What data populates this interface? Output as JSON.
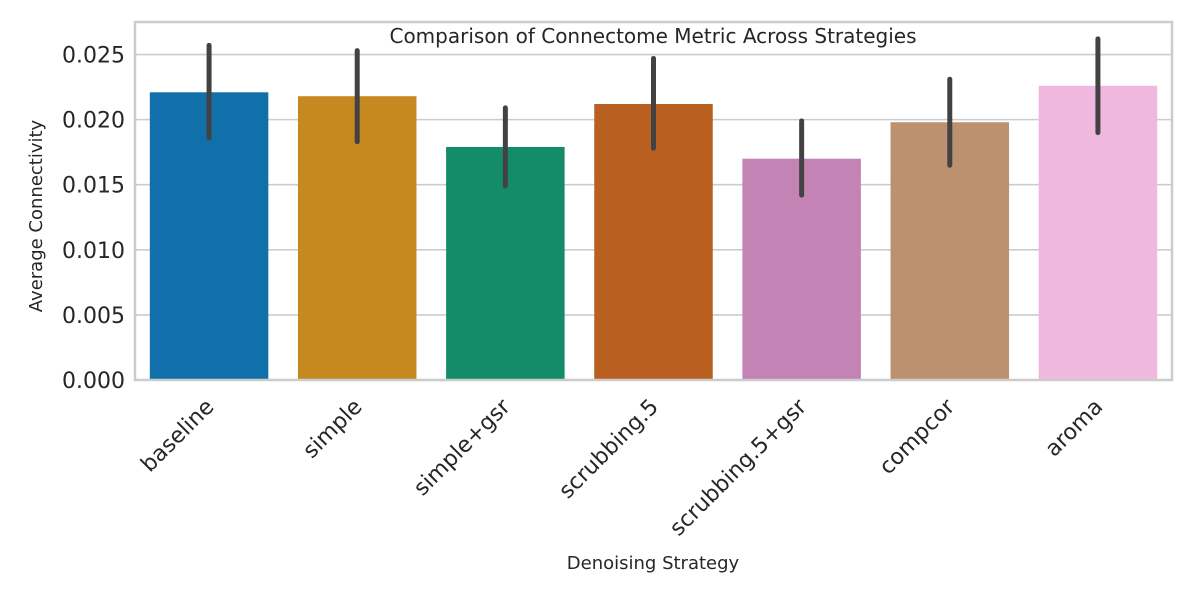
{
  "chart_data": {
    "type": "bar",
    "title": "Comparison of Connectome Metric Across Strategies",
    "xlabel": "Denoising Strategy",
    "ylabel": "Average Connectivity",
    "categories": [
      "baseline",
      "simple",
      "simple+gsr",
      "scrubbing.5",
      "scrubbing.5+gsr",
      "compcor",
      "aroma"
    ],
    "values": [
      0.0221,
      0.0218,
      0.0179,
      0.0212,
      0.017,
      0.0198,
      0.0226
    ],
    "error_low": [
      0.0186,
      0.0183,
      0.0149,
      0.0178,
      0.0142,
      0.0165,
      0.019
    ],
    "error_high": [
      0.0257,
      0.0253,
      0.0209,
      0.0247,
      0.0199,
      0.0231,
      0.0262
    ],
    "colors": [
      "#1170aa",
      "#c5891f",
      "#148c6a",
      "#b96020",
      "#c384b5",
      "#bb9170",
      "#f1b8df"
    ],
    "error_color": "#424242",
    "ylim": [
      0,
      0.0275
    ],
    "yticks": [
      "0.000",
      "0.005",
      "0.010",
      "0.015",
      "0.020",
      "0.025"
    ],
    "ytick_values": [
      0,
      0.005,
      0.01,
      0.015,
      0.02,
      0.025
    ],
    "grid": "horizontal",
    "legend": "none"
  }
}
